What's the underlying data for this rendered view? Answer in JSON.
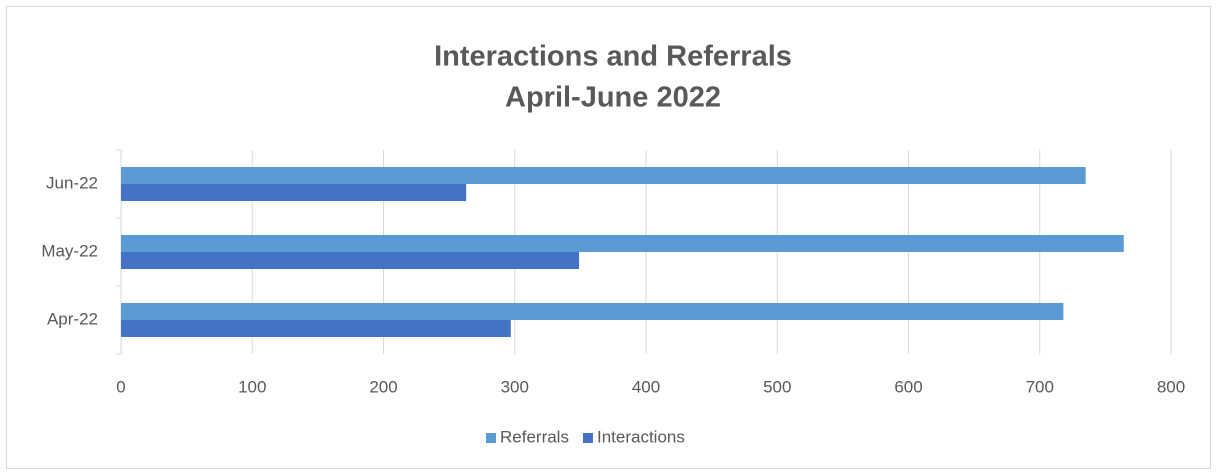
{
  "chart_data": {
    "type": "hbar",
    "title": "Interactions and Referrals",
    "subtitle": "April-June 2022",
    "categories": [
      "Apr-22",
      "May-22",
      "Jun-22"
    ],
    "series": [
      {
        "name": "Referrals",
        "color": "#5b9bd5",
        "values": [
          718,
          764,
          735
        ]
      },
      {
        "name": "Interactions",
        "color": "#4472c4",
        "values": [
          297,
          349,
          263
        ]
      }
    ],
    "xlim": [
      0,
      800
    ],
    "xticks": [
      0,
      100,
      200,
      300,
      400,
      500,
      600,
      700,
      800
    ],
    "grid": true,
    "legend": "bottom"
  }
}
